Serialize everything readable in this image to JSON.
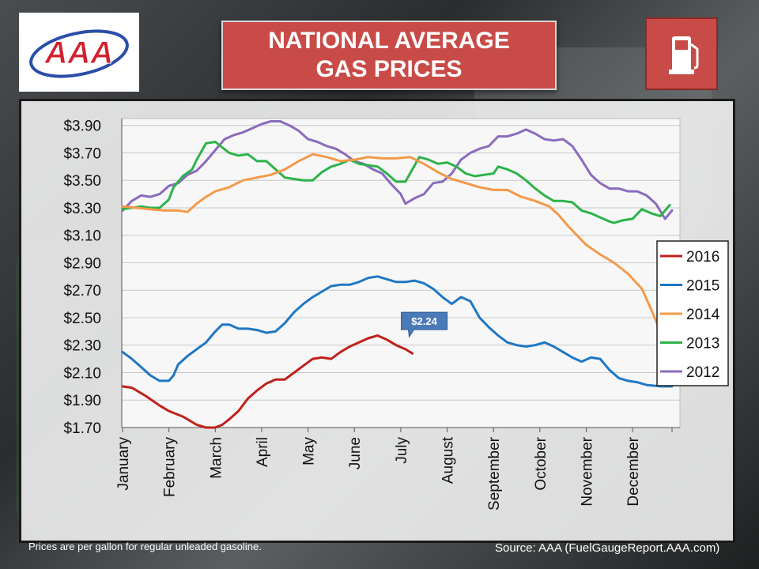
{
  "header": {
    "title_line1": "NATIONAL AVERAGE",
    "title_line2": "GAS PRICES",
    "logo_text": "AAA"
  },
  "footer": {
    "note": "Prices are per gallon for regular unleaded gasoline.",
    "source": "Source:  AAA (FuelGaugeReport.AAA.com)"
  },
  "colors": {
    "title_bg": "#c84b47",
    "s2016": "#c0201c",
    "s2015": "#1f77c4",
    "s2014": "#f39a4a",
    "s2013": "#2db34a",
    "s2012": "#8a6bbd",
    "callout": "#4a7ab8"
  },
  "chart_data": {
    "type": "line",
    "categories": [
      "January",
      "February",
      "March",
      "April",
      "May",
      "June",
      "July",
      "August",
      "September",
      "October",
      "November",
      "December"
    ],
    "ylim": [
      1.7,
      3.95
    ],
    "y_ticks": [
      "$3.90",
      "$3.70",
      "$3.50",
      "$3.30",
      "$3.10",
      "$2.90",
      "$2.70",
      "$2.50",
      "$2.30",
      "$2.10",
      "$1.90",
      "$1.70"
    ],
    "y_tick_values": [
      3.9,
      3.7,
      3.5,
      3.3,
      3.1,
      2.9,
      2.7,
      2.5,
      2.3,
      2.1,
      1.9,
      1.7
    ],
    "legend_position": "right",
    "grid": true,
    "callout": {
      "label": "$2.24",
      "series": "2016",
      "x": 6.25,
      "y": 2.24
    },
    "series": [
      {
        "name": "2016",
        "color": "#c0201c",
        "points": [
          [
            0,
            2.0
          ],
          [
            0.2,
            1.99
          ],
          [
            0.5,
            1.93
          ],
          [
            0.8,
            1.86
          ],
          [
            1.0,
            1.82
          ],
          [
            1.3,
            1.78
          ],
          [
            1.6,
            1.72
          ],
          [
            1.8,
            1.69
          ],
          [
            2.0,
            1.7
          ],
          [
            2.15,
            1.72
          ],
          [
            2.3,
            1.76
          ],
          [
            2.5,
            1.82
          ],
          [
            2.7,
            1.91
          ],
          [
            2.9,
            1.97
          ],
          [
            3.1,
            2.02
          ],
          [
            3.3,
            2.05
          ],
          [
            3.5,
            2.05
          ],
          [
            3.7,
            2.1
          ],
          [
            3.9,
            2.15
          ],
          [
            4.1,
            2.2
          ],
          [
            4.3,
            2.21
          ],
          [
            4.5,
            2.2
          ],
          [
            4.7,
            2.25
          ],
          [
            4.9,
            2.29
          ],
          [
            5.1,
            2.32
          ],
          [
            5.3,
            2.35
          ],
          [
            5.5,
            2.37
          ],
          [
            5.7,
            2.34
          ],
          [
            5.9,
            2.3
          ],
          [
            6.1,
            2.27
          ],
          [
            6.25,
            2.24
          ]
        ]
      },
      {
        "name": "2015",
        "color": "#1f77c4",
        "points": [
          [
            0,
            2.25
          ],
          [
            0.2,
            2.2
          ],
          [
            0.4,
            2.14
          ],
          [
            0.6,
            2.08
          ],
          [
            0.8,
            2.04
          ],
          [
            1.0,
            2.04
          ],
          [
            1.1,
            2.08
          ],
          [
            1.2,
            2.16
          ],
          [
            1.4,
            2.22
          ],
          [
            1.6,
            2.27
          ],
          [
            1.8,
            2.32
          ],
          [
            2.0,
            2.4
          ],
          [
            2.15,
            2.45
          ],
          [
            2.3,
            2.45
          ],
          [
            2.5,
            2.42
          ],
          [
            2.7,
            2.42
          ],
          [
            2.9,
            2.41
          ],
          [
            3.1,
            2.39
          ],
          [
            3.3,
            2.4
          ],
          [
            3.5,
            2.46
          ],
          [
            3.7,
            2.54
          ],
          [
            3.9,
            2.6
          ],
          [
            4.1,
            2.65
          ],
          [
            4.3,
            2.69
          ],
          [
            4.5,
            2.73
          ],
          [
            4.7,
            2.74
          ],
          [
            4.9,
            2.74
          ],
          [
            5.1,
            2.76
          ],
          [
            5.3,
            2.79
          ],
          [
            5.5,
            2.8
          ],
          [
            5.7,
            2.78
          ],
          [
            5.9,
            2.76
          ],
          [
            6.1,
            2.76
          ],
          [
            6.3,
            2.77
          ],
          [
            6.5,
            2.75
          ],
          [
            6.7,
            2.71
          ],
          [
            6.9,
            2.65
          ],
          [
            7.1,
            2.6
          ],
          [
            7.3,
            2.65
          ],
          [
            7.5,
            2.62
          ],
          [
            7.7,
            2.5
          ],
          [
            7.9,
            2.43
          ],
          [
            8.1,
            2.37
          ],
          [
            8.3,
            2.32
          ],
          [
            8.5,
            2.3
          ],
          [
            8.7,
            2.29
          ],
          [
            8.9,
            2.3
          ],
          [
            9.1,
            2.32
          ],
          [
            9.3,
            2.29
          ],
          [
            9.5,
            2.25
          ],
          [
            9.7,
            2.21
          ],
          [
            9.9,
            2.18
          ],
          [
            10.1,
            2.21
          ],
          [
            10.3,
            2.2
          ],
          [
            10.5,
            2.12
          ],
          [
            10.7,
            2.06
          ],
          [
            10.9,
            2.04
          ],
          [
            11.1,
            2.03
          ],
          [
            11.3,
            2.01
          ],
          [
            11.6,
            2.0
          ],
          [
            11.85,
            2.0
          ]
        ]
      },
      {
        "name": "2014",
        "color": "#f39a4a",
        "points": [
          [
            0,
            3.31
          ],
          [
            0.3,
            3.3
          ],
          [
            0.6,
            3.29
          ],
          [
            0.9,
            3.28
          ],
          [
            1.2,
            3.28
          ],
          [
            1.4,
            3.27
          ],
          [
            1.6,
            3.33
          ],
          [
            1.8,
            3.38
          ],
          [
            2.0,
            3.42
          ],
          [
            2.3,
            3.45
          ],
          [
            2.6,
            3.5
          ],
          [
            2.9,
            3.52
          ],
          [
            3.2,
            3.54
          ],
          [
            3.5,
            3.58
          ],
          [
            3.8,
            3.64
          ],
          [
            4.1,
            3.69
          ],
          [
            4.4,
            3.67
          ],
          [
            4.7,
            3.64
          ],
          [
            5.0,
            3.65
          ],
          [
            5.3,
            3.67
          ],
          [
            5.6,
            3.66
          ],
          [
            5.9,
            3.66
          ],
          [
            6.2,
            3.67
          ],
          [
            6.5,
            3.62
          ],
          [
            6.8,
            3.56
          ],
          [
            7.1,
            3.51
          ],
          [
            7.4,
            3.48
          ],
          [
            7.7,
            3.45
          ],
          [
            8.0,
            3.43
          ],
          [
            8.3,
            3.43
          ],
          [
            8.6,
            3.38
          ],
          [
            8.9,
            3.35
          ],
          [
            9.2,
            3.31
          ],
          [
            9.4,
            3.25
          ],
          [
            9.6,
            3.17
          ],
          [
            9.8,
            3.1
          ],
          [
            10.0,
            3.03
          ],
          [
            10.3,
            2.96
          ],
          [
            10.6,
            2.9
          ],
          [
            10.9,
            2.82
          ],
          [
            11.2,
            2.71
          ],
          [
            11.4,
            2.56
          ],
          [
            11.6,
            2.4
          ],
          [
            11.85,
            2.26
          ]
        ]
      },
      {
        "name": "2013",
        "color": "#2db34a",
        "points": [
          [
            0,
            3.29
          ],
          [
            0.2,
            3.3
          ],
          [
            0.4,
            3.31
          ],
          [
            0.6,
            3.3
          ],
          [
            0.8,
            3.3
          ],
          [
            1.0,
            3.36
          ],
          [
            1.1,
            3.45
          ],
          [
            1.3,
            3.53
          ],
          [
            1.5,
            3.58
          ],
          [
            1.6,
            3.65
          ],
          [
            1.8,
            3.77
          ],
          [
            2.0,
            3.78
          ],
          [
            2.15,
            3.74
          ],
          [
            2.3,
            3.7
          ],
          [
            2.5,
            3.68
          ],
          [
            2.7,
            3.69
          ],
          [
            2.9,
            3.64
          ],
          [
            3.1,
            3.64
          ],
          [
            3.3,
            3.58
          ],
          [
            3.5,
            3.52
          ],
          [
            3.7,
            3.51
          ],
          [
            3.9,
            3.5
          ],
          [
            4.1,
            3.5
          ],
          [
            4.3,
            3.56
          ],
          [
            4.5,
            3.6
          ],
          [
            4.7,
            3.62
          ],
          [
            4.9,
            3.65
          ],
          [
            5.1,
            3.62
          ],
          [
            5.3,
            3.61
          ],
          [
            5.5,
            3.6
          ],
          [
            5.7,
            3.55
          ],
          [
            5.9,
            3.49
          ],
          [
            6.1,
            3.49
          ],
          [
            6.3,
            3.61
          ],
          [
            6.4,
            3.67
          ],
          [
            6.6,
            3.65
          ],
          [
            6.8,
            3.62
          ],
          [
            7.0,
            3.63
          ],
          [
            7.2,
            3.6
          ],
          [
            7.4,
            3.55
          ],
          [
            7.6,
            3.53
          ],
          [
            7.8,
            3.54
          ],
          [
            8.0,
            3.55
          ],
          [
            8.1,
            3.6
          ],
          [
            8.3,
            3.58
          ],
          [
            8.5,
            3.55
          ],
          [
            8.7,
            3.5
          ],
          [
            8.9,
            3.44
          ],
          [
            9.1,
            3.39
          ],
          [
            9.3,
            3.35
          ],
          [
            9.5,
            3.35
          ],
          [
            9.7,
            3.34
          ],
          [
            9.9,
            3.28
          ],
          [
            10.1,
            3.26
          ],
          [
            10.3,
            3.23
          ],
          [
            10.5,
            3.2
          ],
          [
            10.6,
            3.19
          ],
          [
            10.8,
            3.21
          ],
          [
            11.0,
            3.22
          ],
          [
            11.2,
            3.29
          ],
          [
            11.4,
            3.26
          ],
          [
            11.6,
            3.24
          ],
          [
            11.8,
            3.32
          ]
        ]
      },
      {
        "name": "2012",
        "color": "#8a6bbd",
        "points": [
          [
            0,
            3.28
          ],
          [
            0.2,
            3.35
          ],
          [
            0.4,
            3.39
          ],
          [
            0.6,
            3.38
          ],
          [
            0.8,
            3.4
          ],
          [
            1.0,
            3.46
          ],
          [
            1.2,
            3.48
          ],
          [
            1.4,
            3.54
          ],
          [
            1.6,
            3.57
          ],
          [
            1.8,
            3.64
          ],
          [
            2.0,
            3.72
          ],
          [
            2.2,
            3.8
          ],
          [
            2.4,
            3.83
          ],
          [
            2.6,
            3.85
          ],
          [
            2.8,
            3.88
          ],
          [
            3.0,
            3.91
          ],
          [
            3.2,
            3.93
          ],
          [
            3.4,
            3.93
          ],
          [
            3.6,
            3.9
          ],
          [
            3.8,
            3.86
          ],
          [
            4.0,
            3.8
          ],
          [
            4.2,
            3.78
          ],
          [
            4.4,
            3.75
          ],
          [
            4.6,
            3.73
          ],
          [
            4.8,
            3.69
          ],
          [
            5.0,
            3.64
          ],
          [
            5.2,
            3.62
          ],
          [
            5.4,
            3.58
          ],
          [
            5.6,
            3.55
          ],
          [
            5.8,
            3.47
          ],
          [
            6.0,
            3.4
          ],
          [
            6.1,
            3.33
          ],
          [
            6.3,
            3.37
          ],
          [
            6.5,
            3.4
          ],
          [
            6.7,
            3.48
          ],
          [
            6.9,
            3.49
          ],
          [
            7.1,
            3.55
          ],
          [
            7.3,
            3.65
          ],
          [
            7.5,
            3.7
          ],
          [
            7.7,
            3.73
          ],
          [
            7.9,
            3.75
          ],
          [
            8.1,
            3.82
          ],
          [
            8.3,
            3.82
          ],
          [
            8.5,
            3.84
          ],
          [
            8.7,
            3.87
          ],
          [
            8.9,
            3.84
          ],
          [
            9.1,
            3.8
          ],
          [
            9.3,
            3.79
          ],
          [
            9.5,
            3.8
          ],
          [
            9.7,
            3.75
          ],
          [
            9.9,
            3.65
          ],
          [
            10.1,
            3.54
          ],
          [
            10.3,
            3.48
          ],
          [
            10.5,
            3.44
          ],
          [
            10.7,
            3.44
          ],
          [
            10.9,
            3.42
          ],
          [
            11.1,
            3.42
          ],
          [
            11.3,
            3.39
          ],
          [
            11.5,
            3.33
          ],
          [
            11.7,
            3.22
          ],
          [
            11.85,
            3.28
          ]
        ]
      }
    ]
  }
}
